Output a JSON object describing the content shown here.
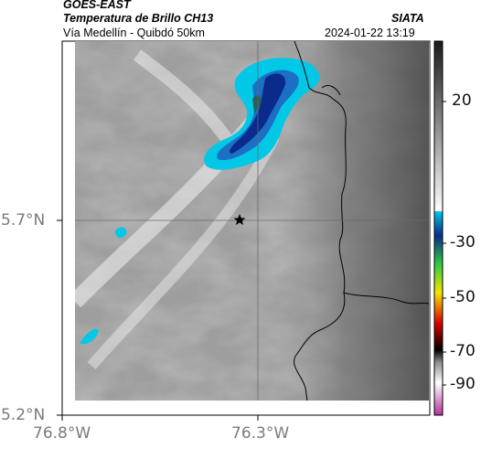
{
  "header": {
    "source": "GOES-EAST",
    "product": "Temperatura de Brillo CH13",
    "region": "Vía Medellín - Quibdó 50km",
    "agency": "SIATA",
    "datetime": "2024-01-22 13:19"
  },
  "map": {
    "lat_labels": [
      "5.7°N",
      "5.2°N"
    ],
    "lon_labels": [
      "76.8°W",
      "76.3°W"
    ],
    "grid": true,
    "marker": "star-icon"
  },
  "colorbar": {
    "tick_labels": [
      "20",
      "-30",
      "-50",
      "-70",
      "-90"
    ],
    "colors": {
      "gray_top": "#1a1a1a",
      "gray_bottom": "#ffffff",
      "cyan": "#00c8e6",
      "blue": "#0a2a8c",
      "green": "#2ecc40",
      "yellow": "#f5e400",
      "red": "#d90000",
      "black": "#000000",
      "magenta": "#b4329e"
    }
  }
}
